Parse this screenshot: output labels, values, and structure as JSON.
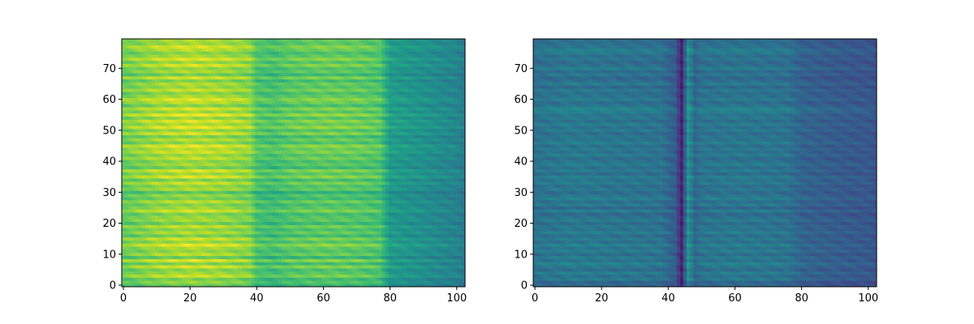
{
  "figure": {
    "background": "#ffffff",
    "colormap": "viridis"
  },
  "chart_data": [
    {
      "type": "heatmap",
      "title": "",
      "xlabel": "",
      "ylabel": "",
      "xlim": [
        -0.5,
        102.5
      ],
      "ylim": [
        -0.5,
        79.5
      ],
      "n_cols": 103,
      "n_rows": 80,
      "xticks": [
        0,
        20,
        40,
        60,
        80,
        100
      ],
      "yticks": [
        0,
        10,
        20,
        30,
        40,
        50,
        60,
        70
      ],
      "xtick_labels": [
        "0",
        "20",
        "40",
        "60",
        "80",
        "100"
      ],
      "ytick_labels": [
        "0",
        "10",
        "20",
        "30",
        "40",
        "50",
        "60",
        "70"
      ],
      "value_range": [
        0,
        1
      ],
      "column_profile": {
        "description_bins_x": [
          0,
          10,
          20,
          30,
          38,
          40,
          45,
          50,
          60,
          70,
          77,
          80,
          90,
          100,
          102
        ],
        "mean_values": [
          0.78,
          0.85,
          0.88,
          0.86,
          0.82,
          0.72,
          0.7,
          0.74,
          0.76,
          0.75,
          0.72,
          0.55,
          0.5,
          0.45,
          0.42
        ]
      },
      "row_modulation": [
        0.55,
        0.7,
        0.6,
        0.85,
        0.72,
        0.65,
        0.88,
        0.62,
        0.9,
        0.55,
        0.8,
        0.68,
        0.75,
        0.92,
        0.7,
        0.85,
        0.6,
        0.78,
        0.66,
        0.82,
        0.58,
        0.74,
        0.7,
        0.62,
        0.86,
        0.72,
        0.64,
        0.8,
        0.6,
        0.7,
        0.5,
        0.76,
        0.68,
        0.84,
        0.62,
        0.9,
        0.72,
        0.88,
        0.6,
        0.74,
        0.66,
        0.82,
        0.7,
        0.86,
        0.78,
        0.92,
        0.66,
        0.8,
        0.62,
        0.88,
        0.7,
        0.93,
        0.76,
        0.9,
        0.7,
        0.94,
        0.72,
        0.88,
        0.64,
        0.8,
        0.9,
        0.76,
        0.66,
        0.84,
        0.7,
        0.78,
        0.62,
        0.86,
        0.58,
        0.76,
        0.68,
        0.88,
        0.7,
        0.9,
        0.74,
        0.66,
        0.8,
        0.88,
        0.72,
        0.76
      ]
    },
    {
      "type": "heatmap",
      "title": "",
      "xlabel": "",
      "ylabel": "",
      "xlim": [
        -0.5,
        102.5
      ],
      "ylim": [
        -0.5,
        79.5
      ],
      "n_cols": 103,
      "n_rows": 80,
      "xticks": [
        0,
        20,
        40,
        60,
        80,
        100
      ],
      "yticks": [
        0,
        10,
        20,
        30,
        40,
        50,
        60,
        70
      ],
      "xtick_labels": [
        "0",
        "20",
        "40",
        "60",
        "80",
        "100"
      ],
      "ytick_labels": [
        "0",
        "10",
        "20",
        "30",
        "40",
        "50",
        "60",
        "70"
      ],
      "value_range": [
        0,
        1
      ],
      "column_profile": {
        "description_bins_x": [
          0,
          10,
          20,
          30,
          38,
          42,
          44,
          46,
          48,
          50,
          60,
          70,
          76,
          80,
          90,
          100,
          102
        ],
        "mean_values": [
          0.45,
          0.48,
          0.47,
          0.46,
          0.45,
          0.35,
          0.12,
          0.6,
          0.4,
          0.46,
          0.47,
          0.46,
          0.45,
          0.38,
          0.35,
          0.33,
          0.32
        ]
      },
      "row_modulation": [
        0.3,
        0.25,
        0.55,
        0.4,
        0.62,
        0.35,
        0.5,
        0.68,
        0.42,
        0.58,
        0.36,
        0.6,
        0.45,
        0.66,
        0.4,
        0.55,
        0.38,
        0.62,
        0.44,
        0.52,
        0.36,
        0.58,
        0.42,
        0.3,
        0.6,
        0.28,
        0.55,
        0.4,
        0.64,
        0.46,
        0.35,
        0.52,
        0.38,
        0.58,
        0.44,
        0.62,
        0.34,
        0.56,
        0.4,
        0.6,
        0.45,
        0.36,
        0.58,
        0.42,
        0.54,
        0.38,
        0.62,
        0.44,
        0.5,
        0.36,
        0.56,
        0.42,
        0.6,
        0.38,
        0.52,
        0.46,
        0.64,
        0.7,
        0.48,
        0.36,
        0.58,
        0.44,
        0.4,
        0.54,
        0.3,
        0.56,
        0.38,
        0.28,
        0.5,
        0.34,
        0.6,
        0.4,
        0.32,
        0.48,
        0.38,
        0.55,
        0.62,
        0.44,
        0.4,
        0.36
      ]
    }
  ]
}
